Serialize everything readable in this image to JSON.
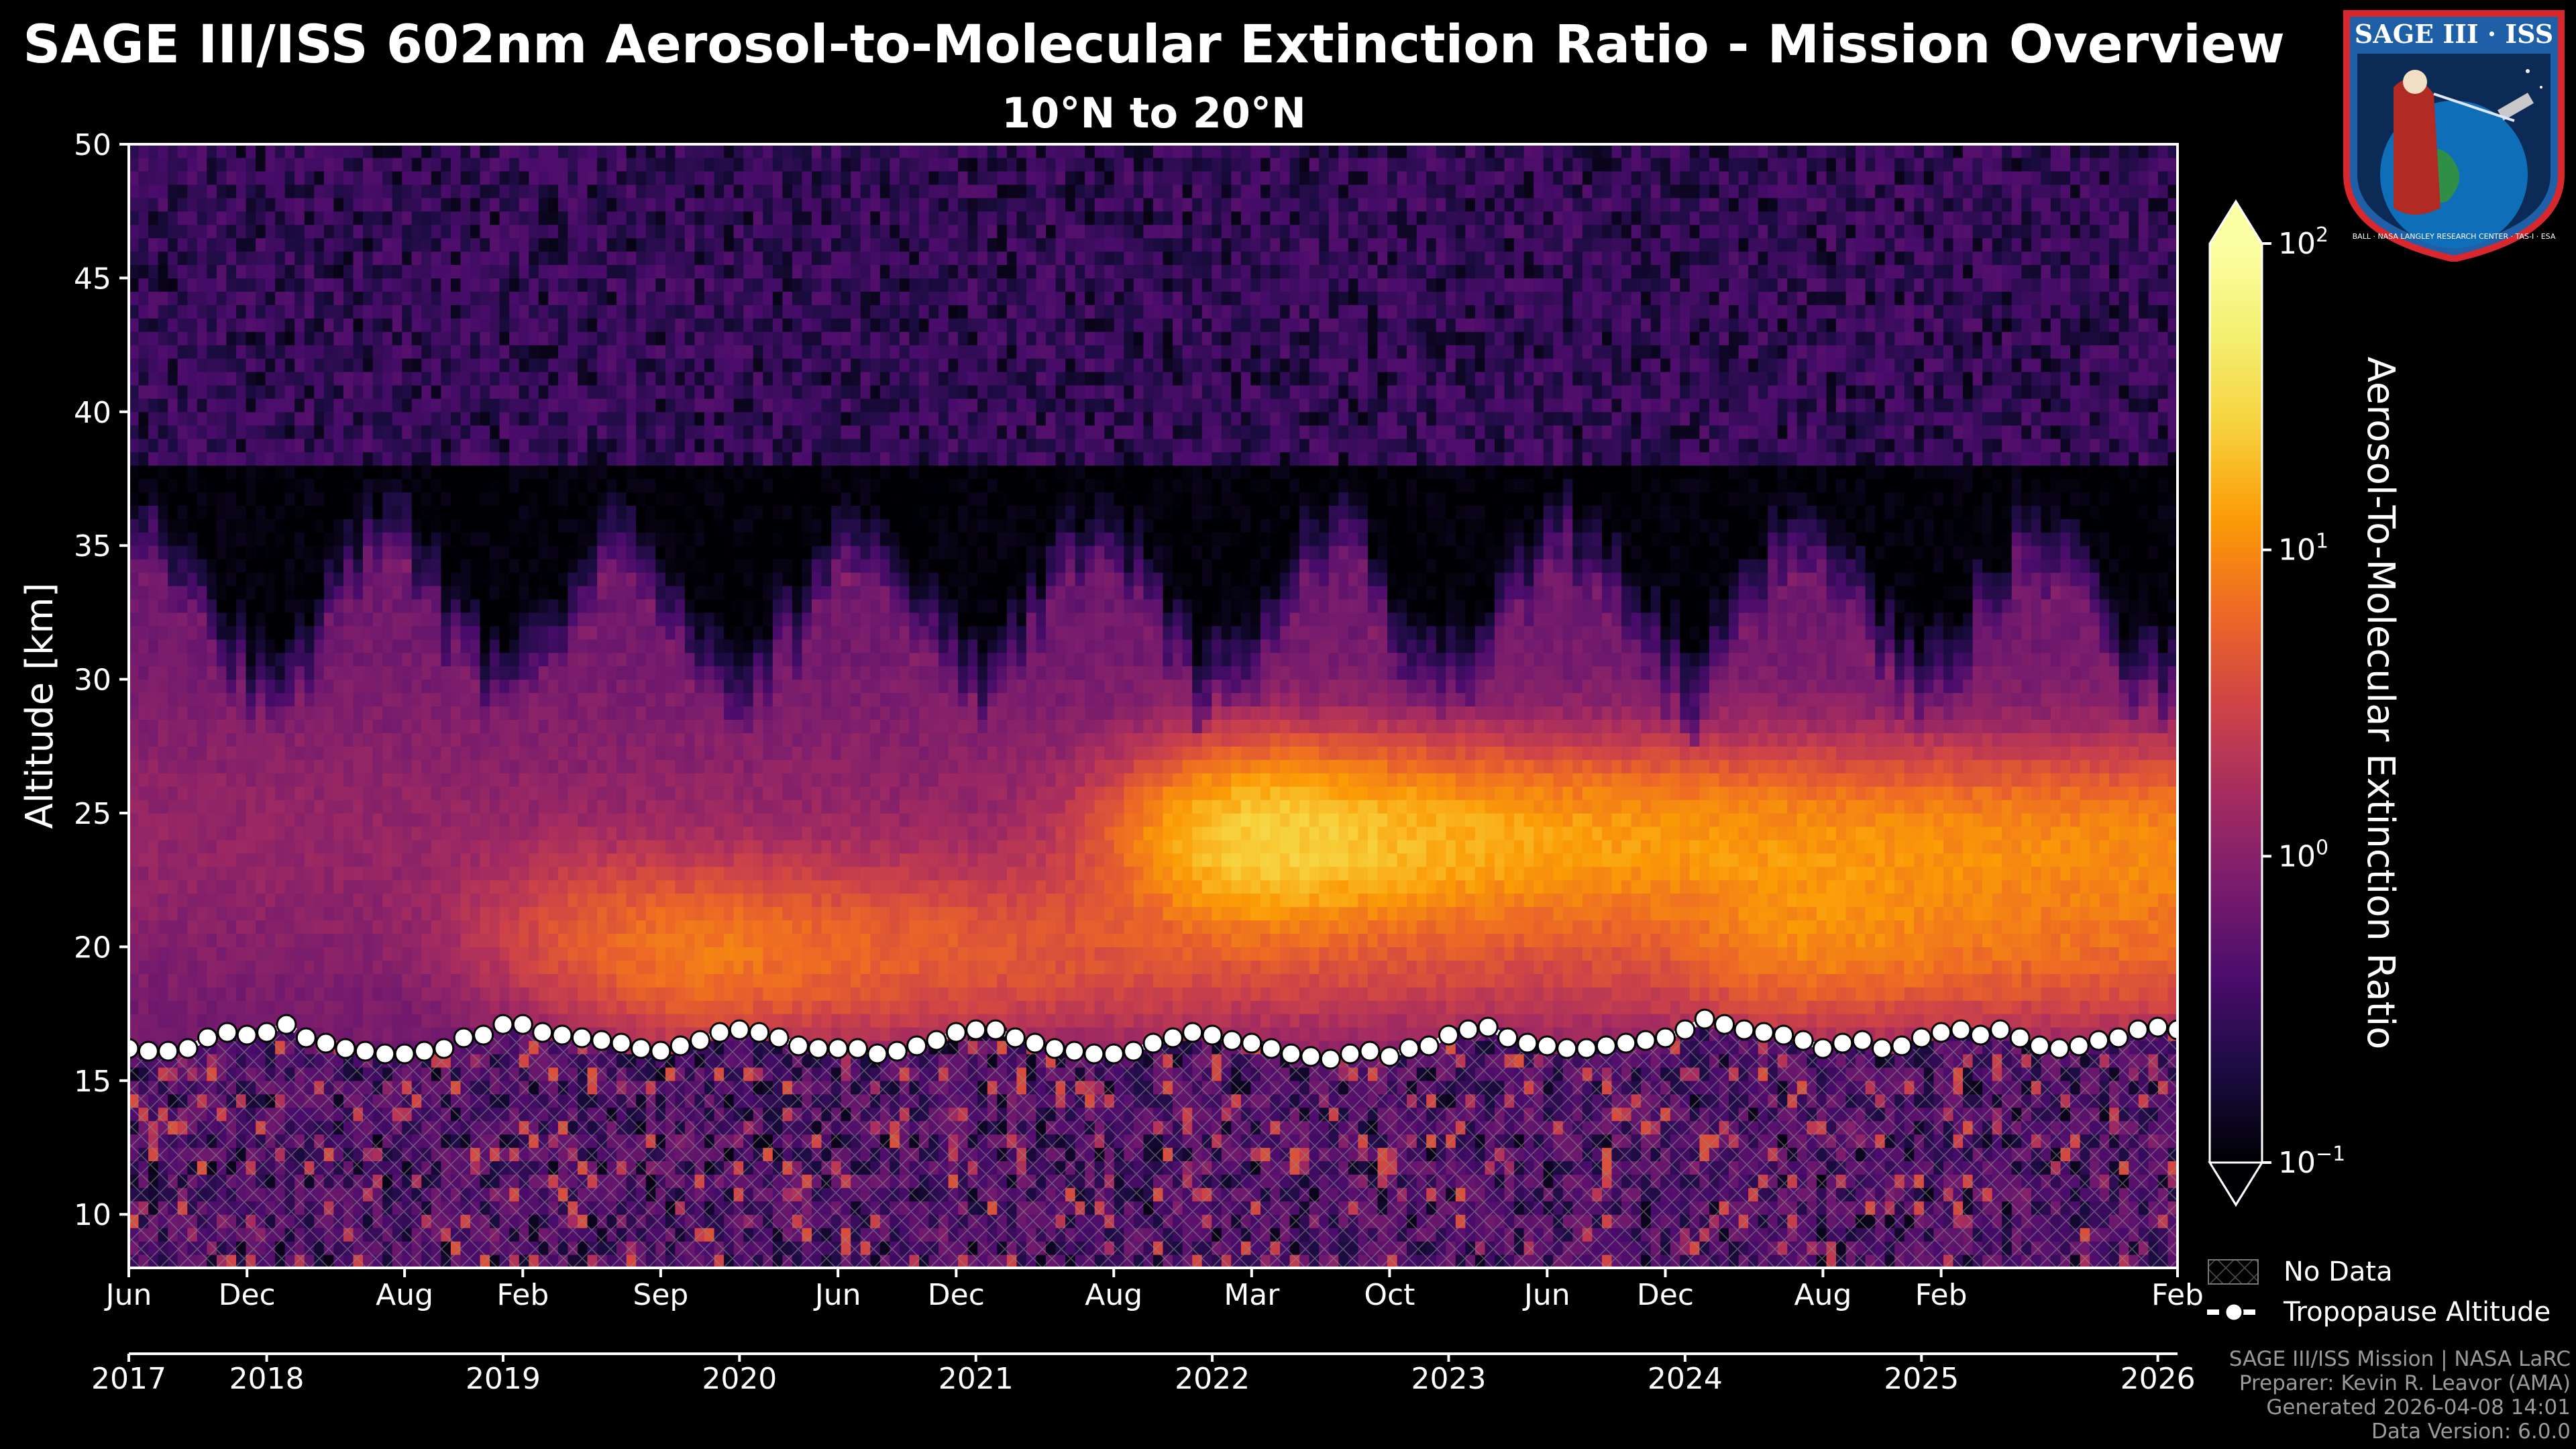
{
  "chart_data": {
    "type": "heatmap",
    "title": "SAGE III/ISS 602nm Aerosol-to-Molecular Extinction Ratio - Mission Overview",
    "subtitle": "10°N to 20°N",
    "ylabel": "Altitude [km]",
    "ylim": [
      8,
      50
    ],
    "yticks": [
      10,
      15,
      20,
      25,
      30,
      35,
      40,
      45,
      50
    ],
    "xlim_months": [
      0,
      104
    ],
    "month_ticks": [
      {
        "label": "Jun",
        "month": 0
      },
      {
        "label": "Dec",
        "month": 6
      },
      {
        "label": "Aug",
        "month": 14
      },
      {
        "label": "Feb",
        "month": 20
      },
      {
        "label": "Sep",
        "month": 27
      },
      {
        "label": "Jun",
        "month": 36
      },
      {
        "label": "Dec",
        "month": 42
      },
      {
        "label": "Aug",
        "month": 50
      },
      {
        "label": "Mar",
        "month": 57
      },
      {
        "label": "Oct",
        "month": 64
      },
      {
        "label": "Jun",
        "month": 72
      },
      {
        "label": "Dec",
        "month": 78
      },
      {
        "label": "Aug",
        "month": 86
      },
      {
        "label": "Feb",
        "month": 92
      },
      {
        "label": "Feb",
        "month": 104
      }
    ],
    "year_ticks": [
      {
        "label": "2017",
        "month": 0
      },
      {
        "label": "2018",
        "month": 7
      },
      {
        "label": "2019",
        "month": 19
      },
      {
        "label": "2020",
        "month": 31
      },
      {
        "label": "2021",
        "month": 43
      },
      {
        "label": "2022",
        "month": 55
      },
      {
        "label": "2023",
        "month": 67
      },
      {
        "label": "2024",
        "month": 79
      },
      {
        "label": "2025",
        "month": 91
      },
      {
        "label": "2026",
        "month": 103
      }
    ],
    "colorbar": {
      "label": "Aerosol-To-Molecular Extinction Ratio",
      "scale": "log",
      "min": 0.1,
      "max": 100,
      "colormap": "inferno",
      "extend": "both",
      "ticks": [
        {
          "base": "10",
          "exp": "2",
          "value": 100
        },
        {
          "base": "10",
          "exp": "1",
          "value": 10
        },
        {
          "base": "10",
          "exp": "0",
          "value": 1
        },
        {
          "base": "10",
          "exp": "−1",
          "value": 0.1
        }
      ]
    },
    "features": [
      {
        "month": 24,
        "altitude_km": 20.5,
        "peak_ratio": 3
      },
      {
        "month": 30,
        "altitude_km": 19.5,
        "peak_ratio": 5
      },
      {
        "month": 58,
        "altitude_km": 24,
        "peak_ratio": 25
      },
      {
        "month": 86,
        "altitude_km": 20.5,
        "peak_ratio": 6
      }
    ],
    "series": [
      {
        "name": "Tropopause Altitude",
        "x_months": [
          0,
          1,
          2,
          3,
          4,
          5,
          6,
          7,
          8,
          9,
          10,
          11,
          12,
          13,
          14,
          15,
          16,
          17,
          18,
          19,
          20,
          21,
          22,
          23,
          24,
          25,
          26,
          27,
          28,
          29,
          30,
          31,
          32,
          33,
          34,
          35,
          36,
          37,
          38,
          39,
          40,
          41,
          42,
          43,
          44,
          45,
          46,
          47,
          48,
          49,
          50,
          51,
          52,
          53,
          54,
          55,
          56,
          57,
          58,
          59,
          60,
          61,
          62,
          63,
          64,
          65,
          66,
          67,
          68,
          69,
          70,
          71,
          72,
          73,
          74,
          75,
          76,
          77,
          78,
          79,
          80,
          81,
          82,
          83,
          84,
          85,
          86,
          87,
          88,
          89,
          90,
          91,
          92,
          93,
          94,
          95,
          96,
          97,
          98,
          99,
          100,
          101,
          102,
          103,
          104
        ],
        "values_km": [
          16.2,
          16.1,
          16.1,
          16.2,
          16.6,
          16.8,
          16.7,
          16.8,
          17.1,
          16.6,
          16.4,
          16.2,
          16.1,
          16.0,
          16.0,
          16.1,
          16.2,
          16.6,
          16.7,
          17.1,
          17.1,
          16.8,
          16.7,
          16.6,
          16.5,
          16.4,
          16.2,
          16.1,
          16.3,
          16.5,
          16.8,
          16.9,
          16.8,
          16.6,
          16.3,
          16.2,
          16.2,
          16.2,
          16.0,
          16.1,
          16.3,
          16.5,
          16.8,
          16.9,
          16.9,
          16.6,
          16.4,
          16.2,
          16.1,
          16.0,
          16.0,
          16.1,
          16.4,
          16.6,
          16.8,
          16.7,
          16.5,
          16.4,
          16.2,
          16.0,
          15.9,
          15.8,
          16.0,
          16.1,
          15.9,
          16.2,
          16.3,
          16.7,
          16.9,
          17.0,
          16.6,
          16.4,
          16.3,
          16.2,
          16.2,
          16.3,
          16.4,
          16.5,
          16.6,
          16.9,
          17.3,
          17.1,
          16.9,
          16.8,
          16.7,
          16.5,
          16.2,
          16.4,
          16.5,
          16.2,
          16.3,
          16.6,
          16.8,
          16.9,
          16.7,
          16.9,
          16.6,
          16.3,
          16.2,
          16.3,
          16.5,
          16.6,
          16.9,
          17.0,
          16.9
        ]
      }
    ],
    "legend": [
      {
        "label": "No Data",
        "kind": "hatch"
      },
      {
        "label": "Tropopause Altitude",
        "kind": "line-marker"
      }
    ],
    "legend_location": "bottom-right, outside axes"
  },
  "logo": {
    "title": "SAGE III · ISS",
    "caption": "BALL · NASA LANGLEY RESEARCH CENTER · TAS-I · ESA"
  },
  "credits": {
    "line1": "SAGE III/ISS Mission | NASA LaRC",
    "line2": "Preparer: Kevin R. Leavor (AMA)",
    "line3": "Generated 2026-04-08 14:01",
    "line4": "Data Version: 6.0.0"
  }
}
